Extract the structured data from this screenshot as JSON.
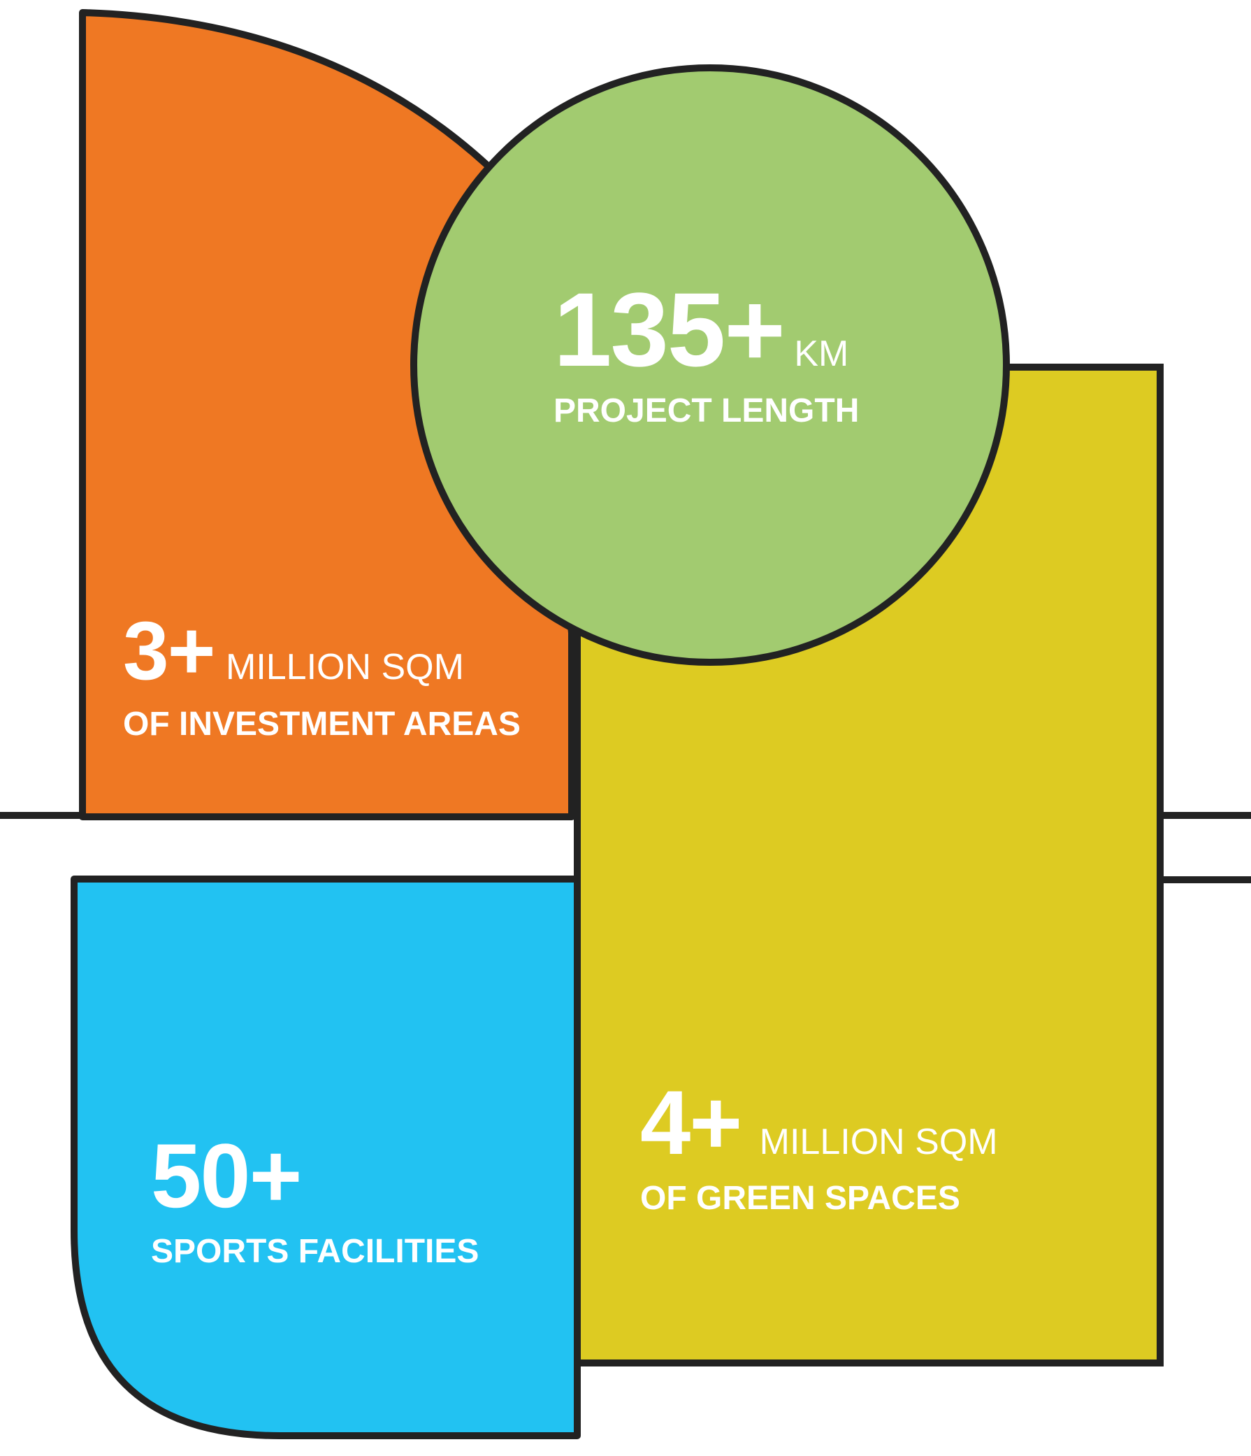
{
  "colors": {
    "orange": "#EF7823",
    "green": "#A2CB70",
    "yellow": "#DDCB22",
    "blue": "#22C2F2",
    "outline": "#222222",
    "text": "#FFFFFF"
  },
  "stats": {
    "length": {
      "value": "135+",
      "unit": "KM",
      "desc": "PROJECT LENGTH"
    },
    "invest": {
      "value": "3+",
      "unit": "MILLION SQM",
      "desc": "OF INVESTMENT AREAS"
    },
    "green": {
      "value": "4+",
      "unit": "MILLION SQM",
      "desc": "OF GREEN SPACES"
    },
    "sports": {
      "value": "50+",
      "unit": "",
      "desc": "SPORTS FACILITIES"
    }
  }
}
